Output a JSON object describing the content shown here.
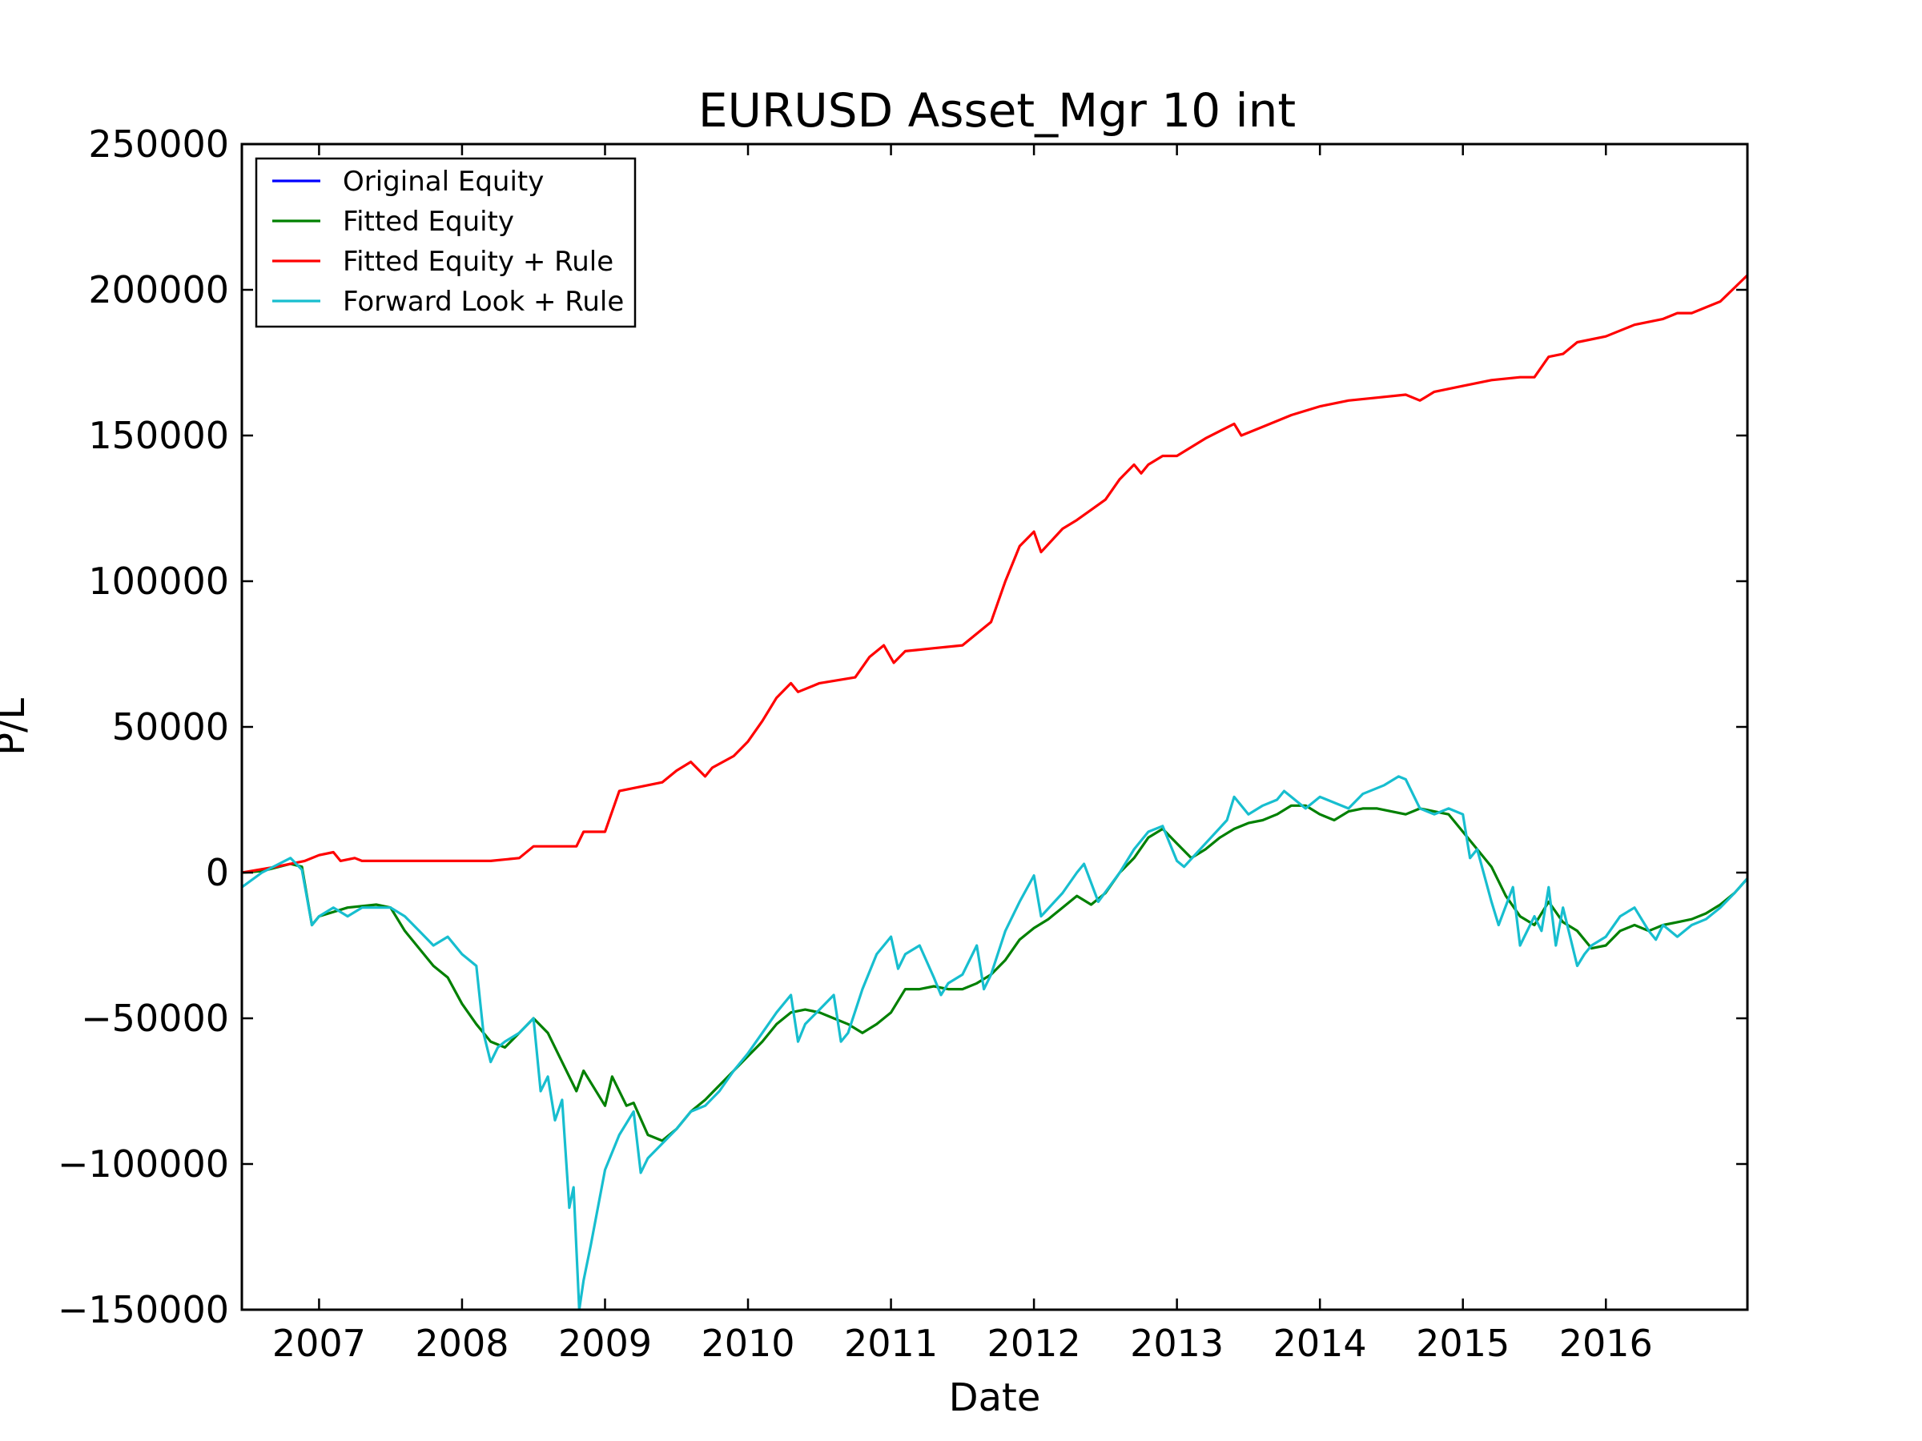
{
  "chart_data": {
    "type": "line",
    "title": "EURUSD Asset_Mgr 10 int",
    "xlabel": "Date",
    "ylabel": "P/L",
    "xlim": [
      2006.46,
      2016.99
    ],
    "ylim": [
      -150000,
      250000
    ],
    "xticks": [
      2007,
      2008,
      2009,
      2010,
      2011,
      2012,
      2013,
      2014,
      2015,
      2016
    ],
    "xtick_labels": [
      "2007",
      "2008",
      "2009",
      "2010",
      "2011",
      "2012",
      "2013",
      "2014",
      "2015",
      "2016"
    ],
    "yticks": [
      -150000,
      -100000,
      -50000,
      0,
      50000,
      100000,
      150000,
      200000,
      250000
    ],
    "ytick_labels": [
      "−150000",
      "−100000",
      "−50000",
      "0",
      "50000",
      "100000",
      "150000",
      "200000",
      "250000"
    ],
    "grid": false,
    "legend_position": "top-left",
    "series": [
      {
        "name": "Original Equity",
        "color": "#0000ff",
        "x": [],
        "y": []
      },
      {
        "name": "Fitted Equity",
        "color": "#008000",
        "x": [
          2006.46,
          2006.6,
          2006.8,
          2006.88,
          2006.95,
          2007.0,
          2007.2,
          2007.4,
          2007.5,
          2007.6,
          2007.8,
          2007.9,
          2008.0,
          2008.1,
          2008.2,
          2008.3,
          2008.4,
          2008.5,
          2008.6,
          2008.7,
          2008.8,
          2008.85,
          2008.9,
          2009.0,
          2009.05,
          2009.15,
          2009.2,
          2009.3,
          2009.4,
          2009.5,
          2009.6,
          2009.7,
          2009.8,
          2009.9,
          2010.0,
          2010.1,
          2010.2,
          2010.3,
          2010.4,
          2010.5,
          2010.6,
          2010.7,
          2010.8,
          2010.9,
          2011.0,
          2011.1,
          2011.2,
          2011.3,
          2011.4,
          2011.5,
          2011.6,
          2011.7,
          2011.8,
          2011.9,
          2012.0,
          2012.1,
          2012.2,
          2012.3,
          2012.4,
          2012.5,
          2012.6,
          2012.7,
          2012.8,
          2012.9,
          2013.0,
          2013.1,
          2013.2,
          2013.3,
          2013.4,
          2013.5,
          2013.6,
          2013.7,
          2013.8,
          2013.9,
          2014.0,
          2014.1,
          2014.2,
          2014.3,
          2014.4,
          2014.5,
          2014.6,
          2014.7,
          2014.8,
          2014.9,
          2015.0,
          2015.1,
          2015.2,
          2015.3,
          2015.4,
          2015.5,
          2015.6,
          2015.7,
          2015.8,
          2015.9,
          2016.0,
          2016.1,
          2016.2,
          2016.3,
          2016.4,
          2016.5,
          2016.6,
          2016.7,
          2016.8,
          2016.9,
          2016.99
        ],
        "y": [
          0,
          500,
          3000,
          2000,
          -18000,
          -15000,
          -12000,
          -11000,
          -12000,
          -20000,
          -32000,
          -36000,
          -45000,
          -52000,
          -58000,
          -60000,
          -55000,
          -50000,
          -55000,
          -65000,
          -75000,
          -68000,
          -72000,
          -80000,
          -70000,
          -80000,
          -79000,
          -90000,
          -92000,
          -88000,
          -82000,
          -78000,
          -73000,
          -68000,
          -63000,
          -58000,
          -52000,
          -48000,
          -47000,
          -48000,
          -50000,
          -52000,
          -55000,
          -52000,
          -48000,
          -40000,
          -40000,
          -39000,
          -40000,
          -40000,
          -38000,
          -35000,
          -30000,
          -23000,
          -19000,
          -16000,
          -12000,
          -8000,
          -11000,
          -7000,
          0,
          5000,
          12000,
          15000,
          10000,
          5000,
          8000,
          12000,
          15000,
          17000,
          18000,
          20000,
          23000,
          23000,
          20000,
          18000,
          21000,
          22000,
          22000,
          21000,
          20000,
          22000,
          21000,
          20000,
          14000,
          8000,
          2000,
          -8000,
          -15000,
          -18000,
          -10000,
          -17000,
          -20000,
          -26000,
          -25000,
          -20000,
          -18000,
          -20000,
          -18000,
          -17000,
          -16000,
          -14000,
          -11000,
          -7000,
          -2000
        ]
      },
      {
        "name": "Fitted Equity + Rule",
        "color": "#ff0000",
        "x": [
          2006.46,
          2006.7,
          2006.9,
          2007.0,
          2007.1,
          2007.15,
          2007.25,
          2007.3,
          2007.5,
          2007.9,
          2008.2,
          2008.4,
          2008.5,
          2008.8,
          2008.85,
          2009.0,
          2009.1,
          2009.2,
          2009.4,
          2009.5,
          2009.6,
          2009.7,
          2009.75,
          2009.9,
          2010.0,
          2010.1,
          2010.2,
          2010.3,
          2010.35,
          2010.5,
          2010.75,
          2010.85,
          2010.95,
          2011.02,
          2011.1,
          2011.3,
          2011.5,
          2011.7,
          2011.8,
          2011.9,
          2012.0,
          2012.05,
          2012.2,
          2012.3,
          2012.5,
          2012.6,
          2012.7,
          2012.75,
          2012.8,
          2012.9,
          2013.0,
          2013.2,
          2013.4,
          2013.45,
          2013.6,
          2013.8,
          2014.0,
          2014.2,
          2014.4,
          2014.6,
          2014.7,
          2014.8,
          2015.0,
          2015.2,
          2015.4,
          2015.5,
          2015.6,
          2015.7,
          2015.8,
          2016.0,
          2016.2,
          2016.4,
          2016.5,
          2016.6,
          2016.8,
          2016.99
        ],
        "y": [
          0,
          2000,
          4000,
          6000,
          7000,
          4000,
          5000,
          4000,
          4000,
          4000,
          4000,
          5000,
          9000,
          9000,
          14000,
          14000,
          28000,
          29000,
          31000,
          35000,
          38000,
          33000,
          36000,
          40000,
          45000,
          52000,
          60000,
          65000,
          62000,
          65000,
          67000,
          74000,
          78000,
          72000,
          76000,
          77000,
          78000,
          86000,
          100000,
          112000,
          117000,
          110000,
          118000,
          121000,
          128000,
          135000,
          140000,
          137000,
          140000,
          143000,
          143000,
          149000,
          154000,
          150000,
          153000,
          157000,
          160000,
          162000,
          163000,
          164000,
          162000,
          165000,
          167000,
          169000,
          170000,
          170000,
          177000,
          178000,
          182000,
          184000,
          188000,
          190000,
          192000,
          192000,
          196000,
          205000
        ]
      },
      {
        "name": "Forward Look + Rule",
        "color": "#17becf",
        "x": [
          2006.46,
          2006.6,
          2006.8,
          2006.88,
          2006.95,
          2007.0,
          2007.1,
          2007.2,
          2007.3,
          2007.5,
          2007.6,
          2007.7,
          2007.8,
          2007.9,
          2008.0,
          2008.1,
          2008.15,
          2008.2,
          2008.25,
          2008.3,
          2008.4,
          2008.5,
          2008.55,
          2008.6,
          2008.65,
          2008.7,
          2008.75,
          2008.78,
          2008.82,
          2008.85,
          2008.9,
          2009.0,
          2009.1,
          2009.2,
          2009.25,
          2009.3,
          2009.4,
          2009.5,
          2009.6,
          2009.7,
          2009.8,
          2009.9,
          2010.0,
          2010.1,
          2010.2,
          2010.3,
          2010.35,
          2010.4,
          2010.5,
          2010.6,
          2010.65,
          2010.7,
          2010.8,
          2010.9,
          2011.0,
          2011.05,
          2011.1,
          2011.2,
          2011.3,
          2011.35,
          2011.4,
          2011.5,
          2011.6,
          2011.65,
          2011.7,
          2011.8,
          2011.9,
          2012.0,
          2012.05,
          2012.2,
          2012.3,
          2012.35,
          2012.45,
          2012.6,
          2012.7,
          2012.8,
          2012.9,
          2013.0,
          2013.05,
          2013.2,
          2013.35,
          2013.4,
          2013.5,
          2013.6,
          2013.7,
          2013.75,
          2013.9,
          2014.0,
          2014.2,
          2014.3,
          2014.45,
          2014.55,
          2014.6,
          2014.7,
          2014.8,
          2014.9,
          2015.0,
          2015.05,
          2015.1,
          2015.2,
          2015.25,
          2015.35,
          2015.4,
          2015.5,
          2015.55,
          2015.6,
          2015.65,
          2015.7,
          2015.8,
          2015.85,
          2015.9,
          2016.0,
          2016.1,
          2016.2,
          2016.3,
          2016.35,
          2016.4,
          2016.5,
          2016.6,
          2016.7,
          2016.8,
          2016.9,
          2016.99
        ],
        "y": [
          -5000,
          0,
          5000,
          1000,
          -18000,
          -15000,
          -12000,
          -15000,
          -12000,
          -12000,
          -15000,
          -20000,
          -25000,
          -22000,
          -28000,
          -32000,
          -55000,
          -65000,
          -60000,
          -58000,
          -55000,
          -50000,
          -75000,
          -70000,
          -85000,
          -78000,
          -115000,
          -108000,
          -150000,
          -140000,
          -128000,
          -102000,
          -90000,
          -82000,
          -103000,
          -98000,
          -93000,
          -88000,
          -82000,
          -80000,
          -75000,
          -68000,
          -62000,
          -55000,
          -48000,
          -42000,
          -58000,
          -52000,
          -47000,
          -42000,
          -58000,
          -55000,
          -40000,
          -28000,
          -22000,
          -33000,
          -28000,
          -25000,
          -36000,
          -42000,
          -38000,
          -35000,
          -25000,
          -40000,
          -35000,
          -20000,
          -10000,
          -1000,
          -15000,
          -7000,
          0,
          3000,
          -10000,
          0,
          8000,
          14000,
          16000,
          4000,
          2000,
          10000,
          18000,
          26000,
          20000,
          23000,
          25000,
          28000,
          22000,
          26000,
          22000,
          27000,
          30000,
          33000,
          32000,
          22000,
          20000,
          22000,
          20000,
          5000,
          8000,
          -10000,
          -18000,
          -5000,
          -25000,
          -15000,
          -20000,
          -5000,
          -25000,
          -12000,
          -32000,
          -28000,
          -25000,
          -22000,
          -15000,
          -12000,
          -20000,
          -23000,
          -18000,
          -22000,
          -18000,
          -16000,
          -12000,
          -7000,
          -2000
        ]
      }
    ]
  }
}
